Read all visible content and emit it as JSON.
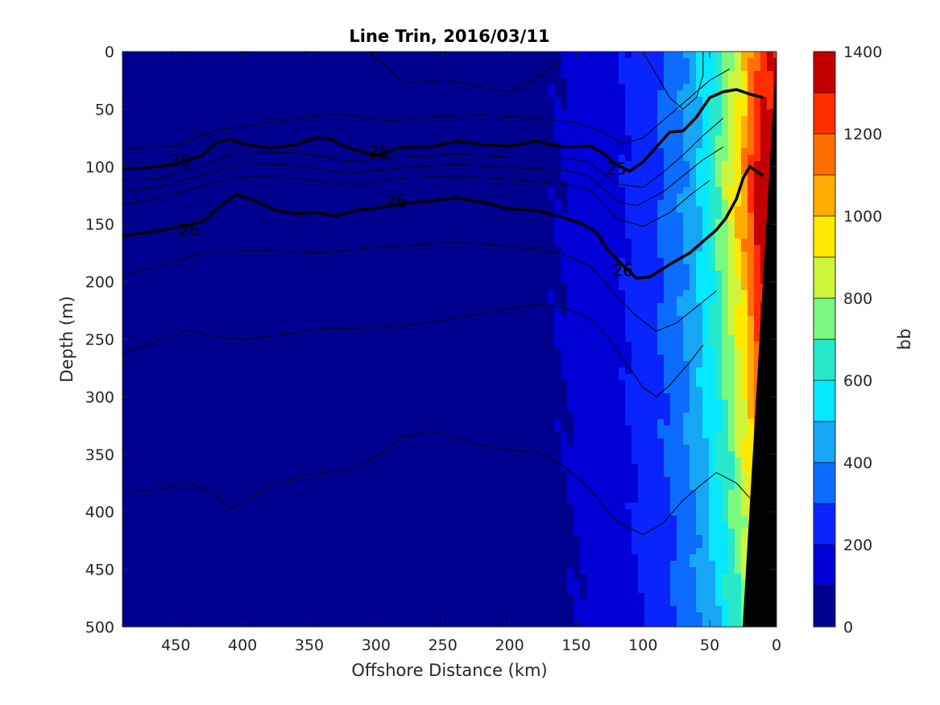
{
  "chart_data": {
    "type": "heatmap",
    "subtype": "filled-contour section",
    "title": "Line Trin, 2016/03/11",
    "xlabel": "Offshore Distance (km)",
    "ylabel": "Depth (m)",
    "xlim": [
      490,
      0
    ],
    "x_reversed": true,
    "ylim": [
      0,
      500
    ],
    "y_reversed": true,
    "x_ticks": [
      450,
      400,
      350,
      300,
      250,
      200,
      150,
      100,
      50,
      0
    ],
    "y_ticks": [
      0,
      50,
      100,
      150,
      200,
      250,
      300,
      350,
      400,
      450,
      500
    ],
    "colorbar": {
      "label": "bb",
      "range": [
        0,
        1400
      ],
      "ticks": [
        0,
        200,
        400,
        600,
        800,
        1000,
        1200,
        1400
      ],
      "levels": [
        0,
        100,
        200,
        300,
        400,
        500,
        600,
        700,
        800,
        900,
        1000,
        1100,
        1200,
        1300,
        1400
      ],
      "colors": [
        "#00008f",
        "#0000d6",
        "#0a24ff",
        "#0b6cff",
        "#16a6f5",
        "#05e8ff",
        "#27e9c9",
        "#7bf97f",
        "#cdf53c",
        "#ffe900",
        "#ffad00",
        "#ff6f00",
        "#ff2d00",
        "#c30000"
      ]
    },
    "grid": false,
    "legend": "none",
    "bold_contours": [
      {
        "label": "25",
        "label_positions": [
          [
            447,
            95
          ],
          [
            298,
            87
          ],
          [
            120,
            102
          ]
        ],
        "points": [
          [
            490,
            102
          ],
          [
            470,
            101
          ],
          [
            450,
            98
          ],
          [
            430,
            90
          ],
          [
            420,
            80
          ],
          [
            410,
            76
          ],
          [
            400,
            80
          ],
          [
            380,
            84
          ],
          [
            360,
            81
          ],
          [
            345,
            75
          ],
          [
            335,
            76
          ],
          [
            320,
            84
          ],
          [
            300,
            90
          ],
          [
            280,
            83
          ],
          [
            260,
            83
          ],
          [
            240,
            78
          ],
          [
            220,
            81
          ],
          [
            200,
            82
          ],
          [
            180,
            78
          ],
          [
            160,
            83
          ],
          [
            140,
            82
          ],
          [
            130,
            88
          ],
          [
            122,
            97
          ],
          [
            110,
            104
          ],
          [
            100,
            96
          ],
          [
            90,
            83
          ],
          [
            80,
            70
          ],
          [
            70,
            69
          ],
          [
            60,
            57
          ],
          [
            50,
            40
          ],
          [
            40,
            35
          ],
          [
            30,
            33
          ],
          [
            20,
            37
          ],
          [
            10,
            40
          ]
        ]
      },
      {
        "label": "26",
        "label_positions": [
          [
            440,
            155
          ],
          [
            285,
            130
          ],
          [
            115,
            190
          ]
        ],
        "points": [
          [
            490,
            160
          ],
          [
            470,
            157
          ],
          [
            450,
            153
          ],
          [
            430,
            148
          ],
          [
            415,
            133
          ],
          [
            405,
            124
          ],
          [
            390,
            130
          ],
          [
            375,
            138
          ],
          [
            360,
            141
          ],
          [
            345,
            140
          ],
          [
            330,
            143
          ],
          [
            315,
            138
          ],
          [
            300,
            136
          ],
          [
            280,
            132
          ],
          [
            260,
            130
          ],
          [
            240,
            127
          ],
          [
            220,
            131
          ],
          [
            200,
            137
          ],
          [
            180,
            138
          ],
          [
            160,
            144
          ],
          [
            145,
            150
          ],
          [
            135,
            157
          ],
          [
            128,
            170
          ],
          [
            120,
            180
          ],
          [
            105,
            197
          ],
          [
            95,
            196
          ],
          [
            80,
            185
          ],
          [
            65,
            175
          ],
          [
            55,
            165
          ],
          [
            45,
            155
          ],
          [
            38,
            145
          ],
          [
            30,
            128
          ],
          [
            25,
            110
          ],
          [
            20,
            100
          ],
          [
            10,
            108
          ]
        ]
      }
    ],
    "thin_contours": [
      [
        [
          490,
          85
        ],
        [
          450,
          82
        ],
        [
          420,
          68
        ],
        [
          380,
          62
        ],
        [
          330,
          54
        ],
        [
          290,
          60
        ],
        [
          260,
          57
        ],
        [
          220,
          55
        ],
        [
          180,
          58
        ],
        [
          150,
          62
        ],
        [
          130,
          70
        ],
        [
          115,
          80
        ],
        [
          100,
          75
        ],
        [
          80,
          55
        ],
        [
          65,
          40
        ],
        [
          50,
          25
        ],
        [
          35,
          15
        ]
      ],
      [
        [
          490,
          112
        ],
        [
          460,
          110
        ],
        [
          420,
          95
        ],
        [
          400,
          87
        ],
        [
          360,
          88
        ],
        [
          320,
          95
        ],
        [
          280,
          92
        ],
        [
          240,
          89
        ],
        [
          200,
          92
        ],
        [
          160,
          92
        ],
        [
          140,
          96
        ],
        [
          120,
          115
        ],
        [
          100,
          118
        ],
        [
          85,
          105
        ],
        [
          70,
          90
        ],
        [
          55,
          73
        ],
        [
          40,
          58
        ]
      ],
      [
        [
          490,
          122
        ],
        [
          460,
          117
        ],
        [
          420,
          104
        ],
        [
          400,
          97
        ],
        [
          360,
          99
        ],
        [
          320,
          106
        ],
        [
          280,
          101
        ],
        [
          240,
          98
        ],
        [
          200,
          101
        ],
        [
          160,
          103
        ],
        [
          140,
          108
        ],
        [
          120,
          130
        ],
        [
          105,
          134
        ],
        [
          85,
          122
        ],
        [
          70,
          108
        ],
        [
          55,
          94
        ],
        [
          40,
          83
        ]
      ],
      [
        [
          490,
          133
        ],
        [
          460,
          127
        ],
        [
          420,
          113
        ],
        [
          400,
          108
        ],
        [
          360,
          110
        ],
        [
          320,
          117
        ],
        [
          280,
          110
        ],
        [
          240,
          108
        ],
        [
          200,
          111
        ],
        [
          160,
          115
        ],
        [
          140,
          120
        ],
        [
          120,
          145
        ],
        [
          100,
          152
        ],
        [
          80,
          140
        ],
        [
          65,
          125
        ],
        [
          50,
          112
        ]
      ],
      [
        [
          490,
          195
        ],
        [
          450,
          182
        ],
        [
          420,
          172
        ],
        [
          380,
          173
        ],
        [
          340,
          175
        ],
        [
          300,
          170
        ],
        [
          270,
          168
        ],
        [
          240,
          166
        ],
        [
          210,
          168
        ],
        [
          180,
          172
        ],
        [
          160,
          176
        ],
        [
          140,
          186
        ],
        [
          120,
          212
        ],
        [
          105,
          230
        ],
        [
          90,
          243
        ],
        [
          75,
          236
        ],
        [
          60,
          222
        ],
        [
          45,
          208
        ]
      ],
      [
        [
          490,
          262
        ],
        [
          460,
          250
        ],
        [
          440,
          242
        ],
        [
          420,
          248
        ],
        [
          400,
          250
        ],
        [
          370,
          246
        ],
        [
          340,
          241
        ],
        [
          300,
          240
        ],
        [
          270,
          237
        ],
        [
          240,
          232
        ],
        [
          210,
          225
        ],
        [
          180,
          220
        ],
        [
          160,
          222
        ],
        [
          140,
          232
        ],
        [
          125,
          250
        ],
        [
          110,
          275
        ],
        [
          100,
          292
        ],
        [
          90,
          300
        ],
        [
          80,
          290
        ],
        [
          65,
          270
        ],
        [
          55,
          255
        ]
      ],
      [
        [
          490,
          383
        ],
        [
          460,
          380
        ],
        [
          440,
          375
        ],
        [
          420,
          385
        ],
        [
          410,
          398
        ],
        [
          400,
          392
        ],
        [
          380,
          378
        ],
        [
          350,
          367
        ],
        [
          320,
          364
        ],
        [
          300,
          352
        ],
        [
          280,
          335
        ],
        [
          260,
          330
        ],
        [
          240,
          336
        ],
        [
          210,
          345
        ],
        [
          180,
          348
        ],
        [
          160,
          360
        ],
        [
          140,
          380
        ],
        [
          120,
          408
        ],
        [
          100,
          420
        ],
        [
          85,
          410
        ],
        [
          70,
          390
        ],
        [
          55,
          375
        ],
        [
          45,
          366
        ],
        [
          30,
          375
        ],
        [
          20,
          388
        ]
      ],
      [
        [
          420,
          78
        ],
        [
          430,
          72
        ],
        [
          438,
          65
        ]
      ],
      [
        [
          305,
          0
        ],
        [
          290,
          15
        ],
        [
          280,
          28
        ],
        [
          250,
          24
        ],
        [
          225,
          30
        ],
        [
          200,
          35
        ],
        [
          175,
          20
        ],
        [
          160,
          5
        ]
      ],
      [
        [
          100,
          0
        ],
        [
          90,
          20
        ],
        [
          80,
          40
        ],
        [
          70,
          50
        ],
        [
          60,
          40
        ],
        [
          55,
          20
        ],
        [
          55,
          0
        ]
      ]
    ],
    "field_description_points": [
      {
        "x": 450,
        "depth": 250,
        "value": 60
      },
      {
        "x": 300,
        "depth": 250,
        "value": 60
      },
      {
        "x": 200,
        "depth": 250,
        "value": 120
      },
      {
        "x": 120,
        "depth": 250,
        "value": 320
      },
      {
        "x": 80,
        "depth": 250,
        "value": 560
      },
      {
        "x": 40,
        "depth": 250,
        "value": 950
      },
      {
        "x": 25,
        "depth": 120,
        "value": 1250
      },
      {
        "x": 60,
        "depth": 480,
        "value": 650
      }
    ]
  }
}
